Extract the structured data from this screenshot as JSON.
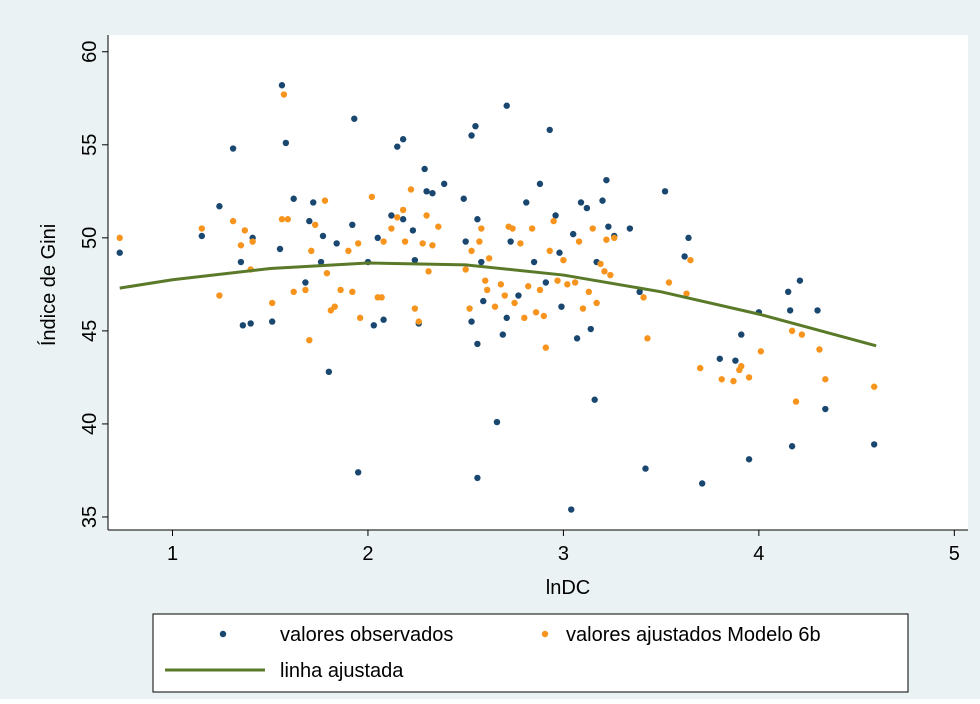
{
  "chart_data": {
    "type": "scatter",
    "x_label": "lnDC",
    "y_label": "Índice de Gini",
    "xlim": [
      0.67,
      5.07
    ],
    "ylim": [
      34.3,
      60.9
    ],
    "xticks": [
      1,
      2,
      3,
      4,
      5
    ],
    "yticks": [
      35,
      40,
      45,
      50,
      55,
      60
    ],
    "series": [
      {
        "name": "valores observados",
        "type": "scatter",
        "color": "#1a476f",
        "x": [
          0.73,
          1.15,
          1.24,
          1.31,
          1.35,
          1.36,
          1.4,
          1.41,
          1.51,
          1.56,
          1.58,
          1.55,
          1.62,
          1.68,
          1.7,
          1.72,
          1.76,
          1.77,
          1.8,
          1.84,
          1.92,
          1.93,
          1.95,
          2.0,
          2.03,
          2.05,
          2.08,
          2.12,
          2.15,
          2.18,
          2.18,
          2.23,
          2.24,
          2.26,
          2.29,
          2.3,
          2.33,
          2.39,
          2.49,
          2.5,
          2.53,
          2.53,
          2.55,
          2.56,
          2.56,
          2.56,
          2.58,
          2.59,
          2.66,
          2.69,
          2.71,
          2.71,
          2.73,
          2.77,
          2.81,
          2.85,
          2.88,
          2.91,
          2.93,
          2.96,
          2.98,
          2.99,
          3.04,
          3.05,
          3.07,
          3.09,
          3.12,
          3.14,
          3.16,
          3.17,
          3.2,
          3.22,
          3.23,
          3.26,
          3.34,
          3.39,
          3.42,
          3.52,
          3.64,
          3.62,
          3.71,
          3.8,
          3.88,
          3.91,
          3.95,
          4.0,
          4.15,
          4.16,
          4.17,
          4.21,
          4.3,
          4.34,
          4.59
        ],
        "values": [
          49.2,
          50.1,
          51.7,
          54.8,
          48.7,
          45.3,
          45.4,
          50.0,
          45.5,
          58.2,
          55.1,
          49.4,
          52.1,
          47.6,
          50.9,
          51.9,
          48.7,
          50.1,
          42.8,
          49.7,
          50.7,
          56.4,
          37.4,
          48.7,
          45.3,
          50.0,
          45.6,
          51.2,
          54.9,
          55.3,
          51.0,
          50.4,
          48.8,
          45.4,
          53.7,
          52.5,
          52.4,
          52.9,
          52.1,
          49.8,
          45.5,
          55.5,
          56.0,
          51.0,
          44.3,
          37.1,
          48.7,
          46.6,
          40.1,
          44.8,
          57.1,
          45.7,
          49.8,
          46.9,
          51.9,
          48.7,
          52.9,
          47.6,
          55.8,
          51.2,
          49.2,
          46.3,
          35.4,
          50.2,
          44.6,
          51.9,
          51.6,
          45.1,
          41.3,
          48.7,
          52.0,
          53.1,
          50.6,
          50.1,
          50.5,
          47.1,
          37.6,
          52.5,
          50.0,
          49.0,
          36.8,
          43.5,
          43.4,
          44.8,
          38.1,
          46.0,
          47.1,
          46.1,
          38.8,
          47.7,
          46.1,
          40.8,
          38.9
        ]
      },
      {
        "name": "valores ajustados Modelo 6b",
        "type": "scatter",
        "color": "#f7941d",
        "x": [
          0.73,
          1.15,
          1.24,
          1.31,
          1.35,
          1.37,
          1.4,
          1.41,
          1.51,
          1.56,
          1.57,
          1.59,
          1.62,
          1.68,
          1.7,
          1.71,
          1.73,
          1.78,
          1.79,
          1.81,
          1.83,
          1.86,
          1.9,
          1.92,
          1.95,
          1.96,
          2.02,
          2.05,
          2.07,
          2.08,
          2.12,
          2.15,
          2.18,
          2.19,
          2.22,
          2.24,
          2.26,
          2.28,
          2.3,
          2.31,
          2.33,
          2.36,
          2.5,
          2.52,
          2.53,
          2.57,
          2.58,
          2.6,
          2.61,
          2.62,
          2.65,
          2.68,
          2.7,
          2.72,
          2.74,
          2.75,
          2.78,
          2.8,
          2.82,
          2.84,
          2.86,
          2.88,
          2.9,
          2.91,
          2.93,
          2.95,
          2.97,
          3.0,
          3.02,
          3.06,
          3.08,
          3.1,
          3.13,
          3.15,
          3.17,
          3.19,
          3.21,
          3.22,
          3.24,
          3.26,
          3.41,
          3.43,
          3.54,
          3.63,
          3.65,
          3.7,
          3.81,
          3.87,
          3.9,
          3.91,
          3.95,
          4.01,
          4.17,
          4.19,
          4.22,
          4.31,
          4.34,
          4.59
        ],
        "values": [
          50.0,
          50.5,
          46.9,
          50.9,
          49.6,
          50.4,
          48.3,
          49.8,
          46.5,
          51.0,
          57.7,
          51.0,
          47.1,
          47.2,
          44.5,
          49.3,
          50.7,
          52.0,
          48.1,
          46.1,
          46.3,
          47.2,
          49.3,
          47.1,
          49.7,
          45.7,
          52.2,
          46.8,
          46.8,
          49.8,
          50.5,
          51.1,
          51.5,
          49.8,
          52.6,
          46.2,
          45.5,
          49.7,
          51.2,
          48.2,
          49.6,
          50.6,
          48.3,
          46.2,
          49.3,
          49.8,
          50.5,
          47.7,
          47.2,
          48.9,
          46.3,
          47.5,
          46.9,
          50.6,
          50.5,
          46.5,
          49.7,
          45.7,
          47.4,
          50.5,
          46.0,
          47.2,
          45.8,
          44.1,
          49.3,
          50.9,
          47.7,
          48.8,
          47.5,
          47.6,
          49.8,
          46.2,
          47.1,
          50.5,
          46.5,
          48.6,
          48.2,
          49.9,
          48.0,
          50.0,
          46.8,
          44.6,
          47.6,
          47.0,
          48.8,
          43.0,
          42.4,
          42.3,
          42.9,
          43.1,
          42.5,
          43.9,
          45.0,
          41.2,
          44.8,
          44.0,
          42.4,
          42.0
        ]
      },
      {
        "name": "linha ajustada",
        "type": "line",
        "color": "#5a7a2a",
        "x": [
          0.73,
          1.0,
          1.5,
          2.0,
          2.5,
          3.0,
          3.5,
          4.0,
          4.6
        ],
        "values": [
          47.3,
          47.75,
          48.35,
          48.65,
          48.55,
          48.0,
          47.1,
          45.9,
          44.2
        ]
      }
    ]
  }
}
